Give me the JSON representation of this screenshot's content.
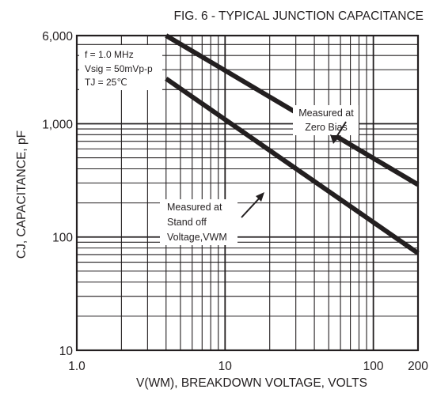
{
  "chart_data": {
    "type": "line",
    "title": "FIG. 6 - TYPICAL JUNCTION CAPACITANCE",
    "xlabel": "V(WM), BREAKDOWN VOLTAGE, VOLTS",
    "ylabel": "CJ, CAPACITANCE, pF",
    "x_scale": "log",
    "y_scale": "log",
    "xlim": [
      1,
      200
    ],
    "ylim": [
      10,
      6000
    ],
    "x_ticks": [
      1,
      10,
      100,
      200
    ],
    "x_tick_labels": [
      "1.0",
      "10",
      "100",
      "200"
    ],
    "y_ticks": [
      10,
      100,
      1000,
      6000
    ],
    "y_tick_labels": [
      "10",
      "100",
      "1,000",
      "6,000"
    ],
    "grid": true,
    "conditions": [
      "f = 1.0 MHz",
      "Vsig = 50mVp-p",
      "TJ = 25℃"
    ],
    "series": [
      {
        "name": "Measured at Zero Bias",
        "x": [
          4,
          200
        ],
        "y": [
          6000,
          290
        ]
      },
      {
        "name": "Measured at Stand off Voltage,VWM",
        "x": [
          4,
          200
        ],
        "y": [
          2500,
          72
        ]
      }
    ],
    "annotations": [
      {
        "lines": [
          "Measured at",
          "Zero Bias"
        ],
        "points_to_series": 0
      },
      {
        "lines": [
          "Measured at",
          "Stand off",
          "Voltage,VWM"
        ],
        "points_to_series": 1
      }
    ]
  }
}
